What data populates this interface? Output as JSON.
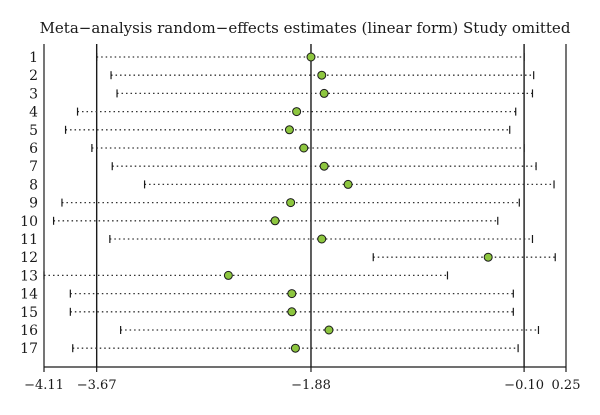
{
  "chart_data": {
    "type": "forest",
    "title": "Meta−analysis random−effects estimates (linear form) Study omitted",
    "xlim": [
      -4.11,
      0.25
    ],
    "xticks": [
      -4.11,
      -3.67,
      -1.88,
      -0.1,
      0.25
    ],
    "xtick_labels": [
      "−4.11",
      "−3.67",
      "−1.88",
      "−0.10",
      "0.25"
    ],
    "reference_lines": [
      -3.67,
      -1.88,
      -0.1
    ],
    "marker_color": "#8dc63f",
    "studies": [
      {
        "label": "1",
        "estimate": -1.88,
        "lower": -3.67,
        "upper": -0.1
      },
      {
        "label": "2",
        "estimate": -1.79,
        "lower": -3.55,
        "upper": -0.02
      },
      {
        "label": "3",
        "estimate": -1.77,
        "lower": -3.5,
        "upper": -0.03
      },
      {
        "label": "4",
        "estimate": -2.0,
        "lower": -3.83,
        "upper": -0.17
      },
      {
        "label": "5",
        "estimate": -2.06,
        "lower": -3.93,
        "upper": -0.22
      },
      {
        "label": "6",
        "estimate": -1.94,
        "lower": -3.71,
        "upper": -0.1
      },
      {
        "label": "7",
        "estimate": -1.77,
        "lower": -3.54,
        "upper": 0.0
      },
      {
        "label": "8",
        "estimate": -1.57,
        "lower": -3.27,
        "upper": 0.15
      },
      {
        "label": "9",
        "estimate": -2.05,
        "lower": -3.96,
        "upper": -0.14
      },
      {
        "label": "10",
        "estimate": -2.18,
        "lower": -4.03,
        "upper": -0.32
      },
      {
        "label": "11",
        "estimate": -1.79,
        "lower": -3.56,
        "upper": -0.03
      },
      {
        "label": "12",
        "estimate": -0.4,
        "lower": -1.36,
        "upper": 0.16
      },
      {
        "label": "13",
        "estimate": -2.57,
        "lower": -4.11,
        "upper": -0.74
      },
      {
        "label": "14",
        "estimate": -2.04,
        "lower": -3.89,
        "upper": -0.19
      },
      {
        "label": "15",
        "estimate": -2.04,
        "lower": -3.89,
        "upper": -0.19
      },
      {
        "label": "16",
        "estimate": -1.73,
        "lower": -3.47,
        "upper": 0.02
      },
      {
        "label": "17",
        "estimate": -2.01,
        "lower": -3.87,
        "upper": -0.15
      }
    ]
  }
}
